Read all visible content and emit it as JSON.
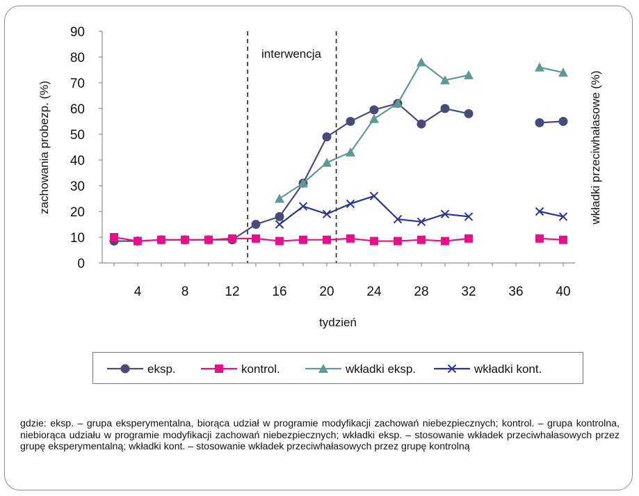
{
  "chart_data": {
    "type": "line",
    "ylabel_left": "zachowania probezp. (%)",
    "ylabel_right": "wkładki przeciwhałasowe (%)",
    "xlabel": "tydzień",
    "ylim": [
      0,
      90
    ],
    "xlim": [
      1,
      41
    ],
    "y_ticks": [
      0,
      10,
      20,
      30,
      40,
      50,
      60,
      70,
      80,
      90
    ],
    "x_ticks": [
      4,
      8,
      12,
      16,
      20,
      24,
      28,
      32,
      36,
      40
    ],
    "intervention": {
      "label": "interwencja",
      "x_start": 13.3,
      "x_end": 20.8
    },
    "legend_position": "bottom",
    "series": [
      {
        "name": "eksp.",
        "color": "#4a4a78",
        "marker": "circle",
        "x": [
          2,
          4,
          6,
          8,
          10,
          12,
          14,
          16,
          18,
          20,
          22,
          24,
          26,
          28,
          30,
          32,
          38,
          40
        ],
        "y": [
          8.5,
          8.5,
          9,
          9,
          9,
          9,
          15,
          18,
          31,
          49,
          55,
          59.5,
          62,
          54,
          60,
          58,
          54.5,
          55
        ]
      },
      {
        "name": "kontrol.",
        "color": "#e8108a",
        "marker": "square",
        "x": [
          2,
          4,
          6,
          8,
          10,
          12,
          14,
          16,
          18,
          20,
          22,
          24,
          26,
          28,
          30,
          32,
          38,
          40
        ],
        "y": [
          10,
          8.5,
          9,
          9,
          9,
          9.5,
          9.5,
          8.5,
          9,
          9,
          9.5,
          8.5,
          8.5,
          9,
          8.5,
          9.5,
          9.5,
          9
        ]
      },
      {
        "name": "wkładki eksp.",
        "color": "#5e9a93",
        "marker": "triangle",
        "x": [
          16,
          18,
          20,
          22,
          24,
          26,
          28,
          30,
          32,
          38,
          40
        ],
        "y": [
          25,
          31,
          39,
          43,
          56,
          62,
          78,
          71,
          73,
          76,
          74
        ]
      },
      {
        "name": "wkładki kont.",
        "color": "#2a3590",
        "marker": "x",
        "x": [
          16,
          18,
          20,
          22,
          24,
          26,
          28,
          30,
          32,
          38,
          40
        ],
        "y": [
          15,
          22,
          19,
          23,
          26,
          17,
          16,
          19,
          18,
          20,
          18
        ]
      }
    ]
  },
  "footnote": "gdzie: eksp. – grupa eksperymentalna, biorąca udział w programie modyfikacji zachowań niebezpiecznych; kontrol. – grupa kontrolna, niebiorąca udziału w programie modyfikacji zachowań niebezpiecznych; wkładki eksp. – stosowanie wkładek przeciwhałasowych przez grupę eksperymentalną; wkładki kont. – stosowanie wkładek przeciwhałasowych przez grupę kontrolną"
}
